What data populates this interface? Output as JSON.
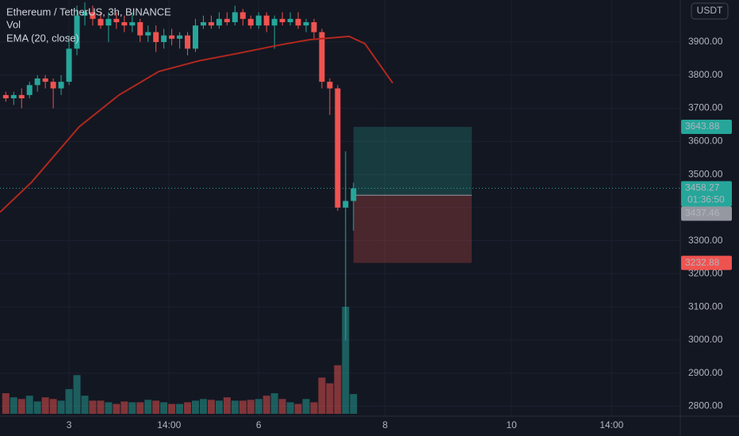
{
  "chart_data": {
    "type": "candlestick",
    "title": "Ethereum / TetherUS, 3h, BINANCE",
    "legend": [
      "Vol",
      "EMA (20, close)"
    ],
    "currency_button": "USDT",
    "up_color": "#26a69a",
    "down_color": "#ef5350",
    "x": [
      2,
      2.125,
      2.25,
      2.375,
      2.5,
      2.625,
      2.75,
      2.875,
      3,
      3.125,
      3.25,
      3.375,
      3.5,
      3.625,
      3.75,
      3.875,
      4,
      4.125,
      4.25,
      4.375,
      4.5,
      4.625,
      4.75,
      4.875,
      5,
      5.125,
      5.25,
      5.375,
      5.5,
      5.625,
      5.75,
      5.875,
      6,
      6.125,
      6.25,
      6.375,
      6.5,
      6.625,
      6.75,
      6.875,
      7,
      7.125,
      7.25,
      7.375,
      7.5
    ],
    "open": [
      3740,
      3730,
      3740,
      3740,
      3770,
      3790,
      3780,
      3760,
      3780,
      3880,
      3980,
      3990,
      3970,
      3950,
      3970,
      3960,
      3950,
      3960,
      3920,
      3930,
      3900,
      3920,
      3910,
      3920,
      3880,
      3950,
      3960,
      3950,
      3970,
      3960,
      3990,
      3970,
      3950,
      3980,
      3950,
      3970,
      3960,
      3970,
      3950,
      3960,
      3930,
      3780,
      3760,
      3400,
      3420
    ],
    "high": [
      3750,
      3750,
      3760,
      3780,
      3800,
      3800,
      3790,
      3800,
      3920,
      4010,
      4020,
      4010,
      3990,
      3990,
      3990,
      3980,
      3990,
      3970,
      3950,
      3950,
      3940,
      3940,
      3930,
      3930,
      3970,
      3980,
      3980,
      3990,
      3990,
      4010,
      4000,
      3980,
      3990,
      3990,
      3980,
      3990,
      3990,
      3990,
      3970,
      3970,
      3940,
      3790,
      3770,
      3570,
      3475
    ],
    "low": [
      3720,
      3710,
      3700,
      3730,
      3750,
      3760,
      3700,
      3740,
      3770,
      3860,
      3950,
      3950,
      3940,
      3900,
      3940,
      3930,
      3930,
      3900,
      3900,
      3870,
      3880,
      3890,
      3880,
      3860,
      3870,
      3940,
      3940,
      3940,
      3950,
      3950,
      3950,
      3940,
      3940,
      3930,
      3880,
      3950,
      3950,
      3940,
      3930,
      3910,
      3760,
      3680,
      3390,
      3000,
      3330
    ],
    "close": [
      3730,
      3740,
      3730,
      3770,
      3790,
      3780,
      3760,
      3780,
      3880,
      3980,
      3990,
      3970,
      3950,
      3970,
      3960,
      3950,
      3960,
      3920,
      3930,
      3900,
      3920,
      3910,
      3920,
      3880,
      3950,
      3960,
      3950,
      3970,
      3960,
      3990,
      3970,
      3950,
      3980,
      3950,
      3970,
      3960,
      3970,
      3950,
      3960,
      3930,
      3780,
      3760,
      3400,
      3420,
      3458
    ],
    "volume": [
      25,
      20,
      18,
      22,
      15,
      20,
      18,
      16,
      30,
      47,
      22,
      16,
      16,
      14,
      12,
      15,
      14,
      14,
      17,
      16,
      14,
      12,
      12,
      14,
      16,
      18,
      17,
      16,
      20,
      16,
      16,
      17,
      18,
      22,
      25,
      18,
      14,
      12,
      18,
      14,
      44,
      37,
      59,
      130,
      24
    ],
    "ema": {
      "color": "#b2281e",
      "x": [
        1.908,
        2.41,
        3.16,
        3.79,
        4.42,
        5.05,
        5.68,
        6.3,
        6.8,
        7.43,
        7.68,
        8.12
      ],
      "values": [
        3386,
        3477,
        3644,
        3740,
        3811,
        3843,
        3866,
        3890,
        3907,
        3917,
        3895,
        3776
      ]
    },
    "position": {
      "x": [
        7.5,
        9.37
      ],
      "target": 3643.88,
      "entry": 3437.46,
      "stop": 3232.88
    },
    "last_price": 3458.27,
    "countdown": "01:36:50",
    "ylim": [
      2770,
      4027
    ],
    "yticks": [
      {
        "value": 2800,
        "label": "2800.00"
      },
      {
        "value": 2900,
        "label": "2900.00"
      },
      {
        "value": 3000,
        "label": "3000.00"
      },
      {
        "value": 3100,
        "label": "3100.00"
      },
      {
        "value": 3200,
        "label": "3200.00"
      },
      {
        "value": 3300,
        "label": "3300.00"
      },
      {
        "value": 3400,
        "label": "3400.00"
      },
      {
        "value": 3500,
        "label": "3500.00"
      },
      {
        "value": 3600,
        "label": "3600.00"
      },
      {
        "value": 3700,
        "label": "3700.00"
      },
      {
        "value": 3800,
        "label": "3800.00"
      },
      {
        "value": 3900,
        "label": "3900.00"
      }
    ],
    "xlim": [
      1.908,
      12.67
    ],
    "xticks": [
      {
        "value": 3,
        "label": "3"
      },
      {
        "value": 4.583,
        "label": "14:00"
      },
      {
        "value": 6,
        "label": "6"
      },
      {
        "value": 8,
        "label": "8"
      },
      {
        "value": 10,
        "label": "10"
      },
      {
        "value": 11.583,
        "label": "14:00"
      }
    ],
    "grid": true
  }
}
